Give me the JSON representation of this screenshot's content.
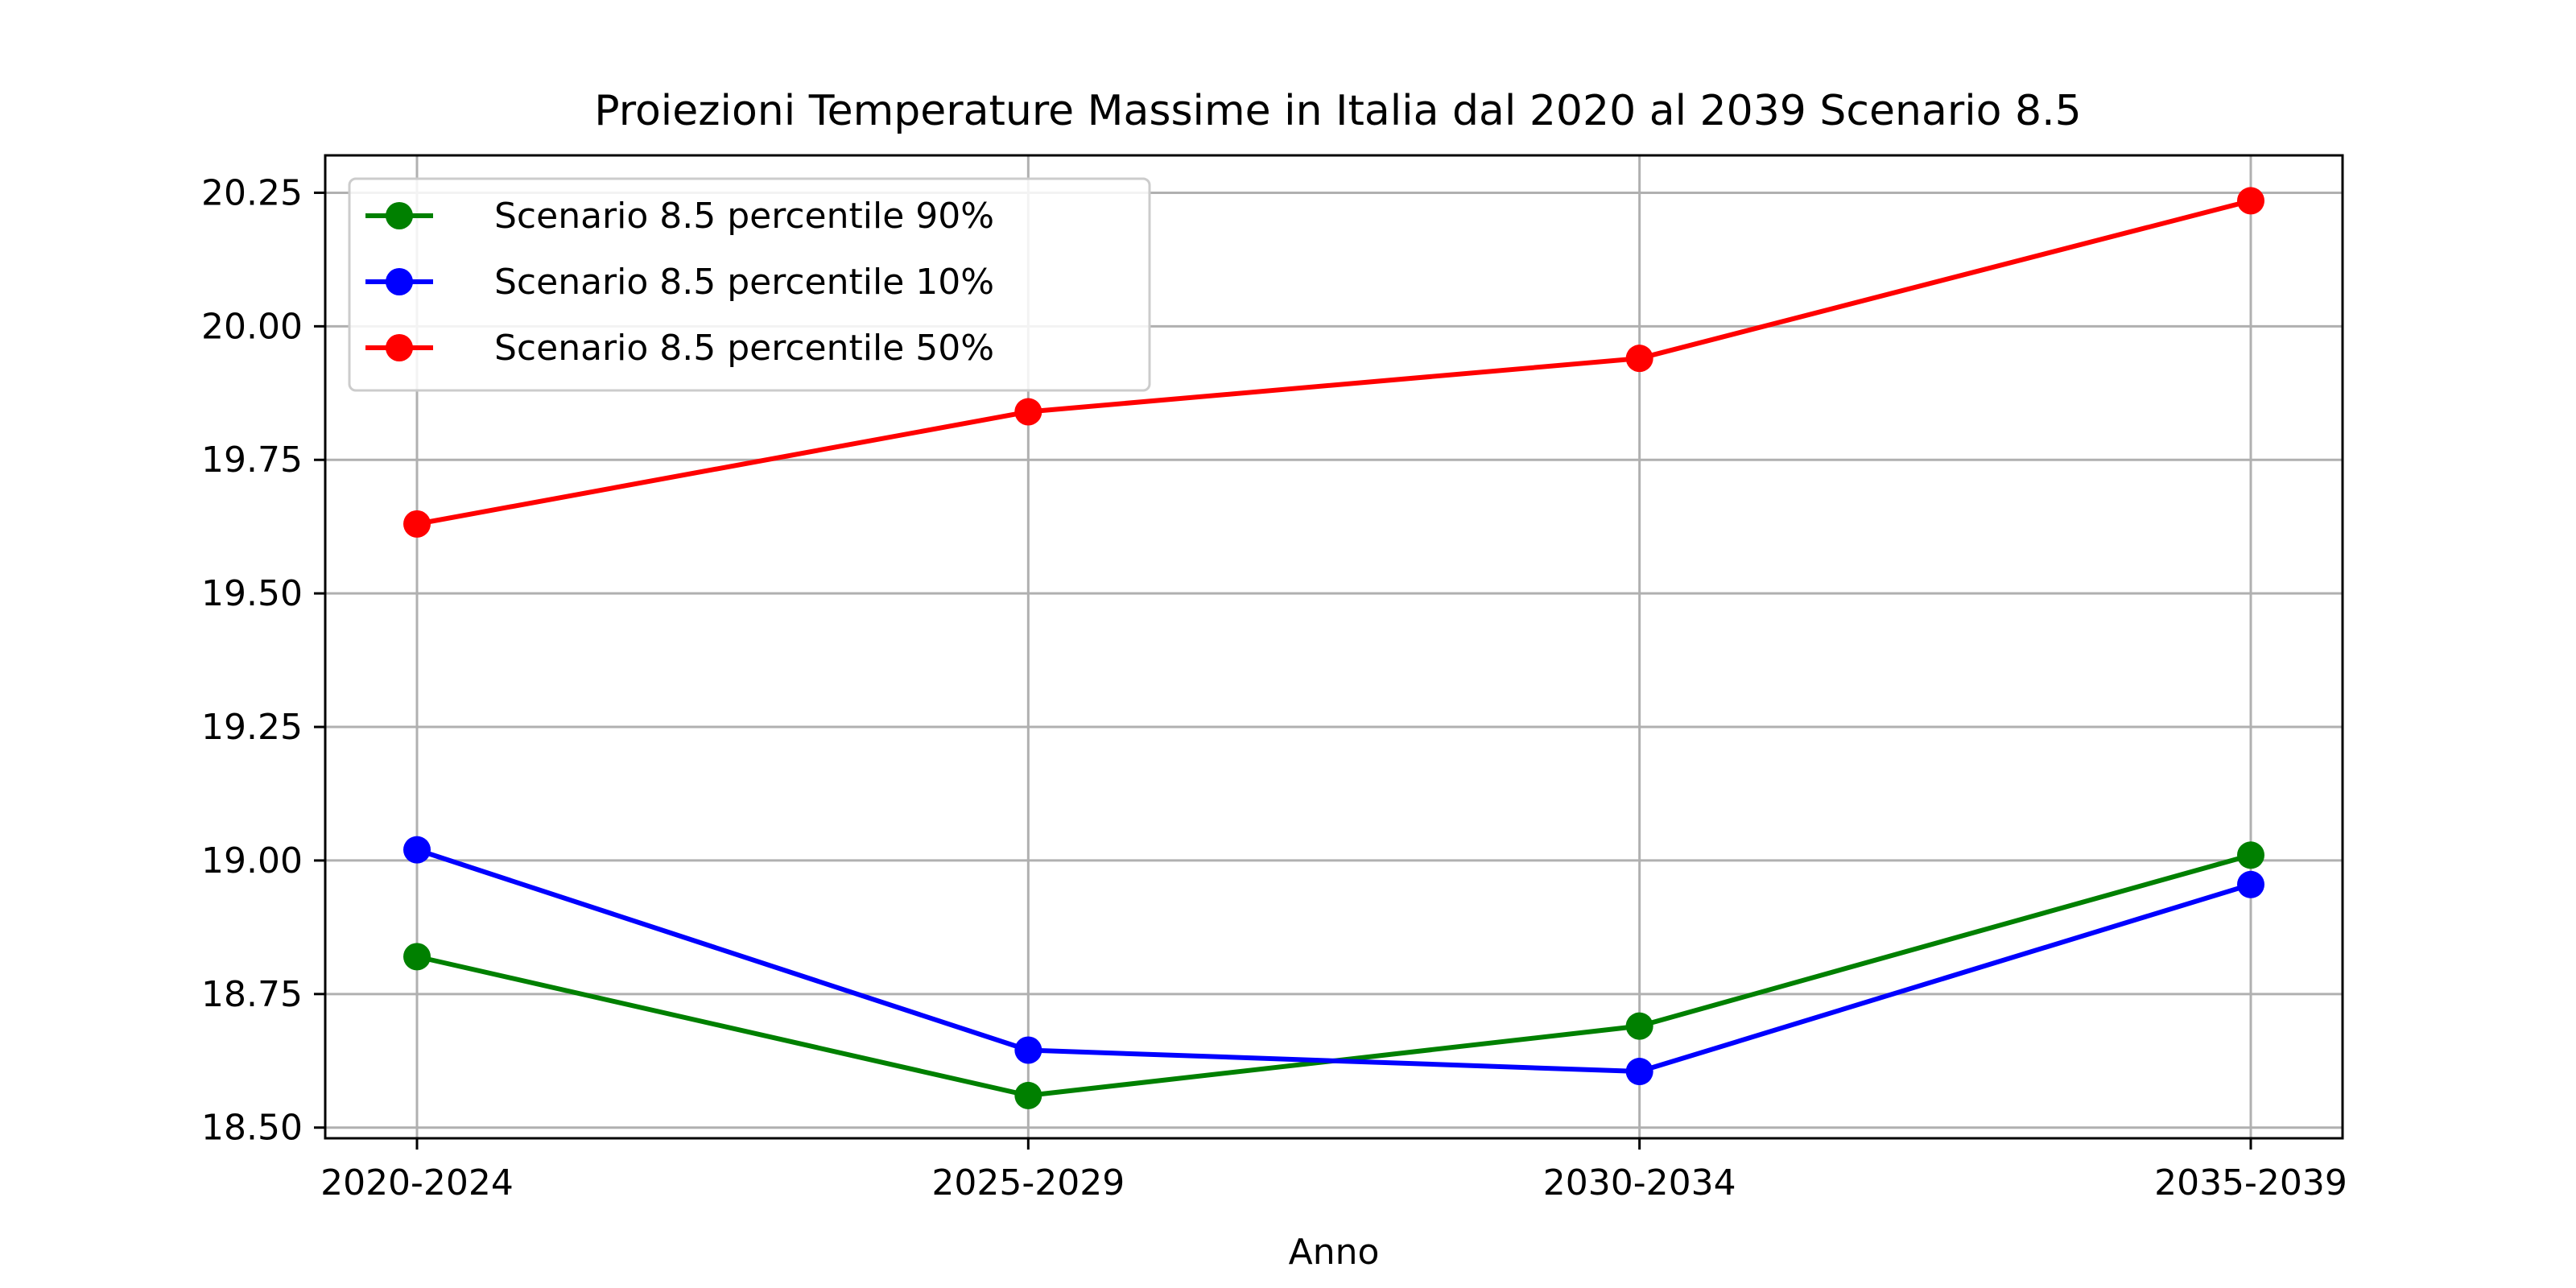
{
  "chart_data": {
    "type": "line",
    "title": "Proiezioni Temperature Massime in Italia dal 2020 al 2039 Scenario 8.5",
    "xlabel": "Anno",
    "ylabel": "",
    "categories": [
      "2020-2024",
      "2025-2029",
      "2030-2034",
      "2035-2039"
    ],
    "ylim": [
      18.48,
      20.32
    ],
    "yticks": [
      18.5,
      18.75,
      19.0,
      19.25,
      19.5,
      19.75,
      20.0,
      20.25
    ],
    "ytick_labels": [
      "18.50",
      "18.75",
      "19.00",
      "19.25",
      "19.50",
      "19.75",
      "20.00",
      "20.25"
    ],
    "grid": true,
    "legend_position": "upper-left",
    "series": [
      {
        "name": "Scenario 8.5 percentile 90%",
        "color": "#008000",
        "values": [
          18.82,
          18.56,
          18.69,
          19.01
        ]
      },
      {
        "name": "Scenario 8.5 percentile 10%",
        "color": "#0000ff",
        "values": [
          19.02,
          18.645,
          18.605,
          18.955
        ]
      },
      {
        "name": "Scenario 8.5 percentile 50%",
        "color": "#ff0000",
        "values": [
          19.63,
          19.84,
          19.94,
          20.235
        ]
      }
    ]
  }
}
